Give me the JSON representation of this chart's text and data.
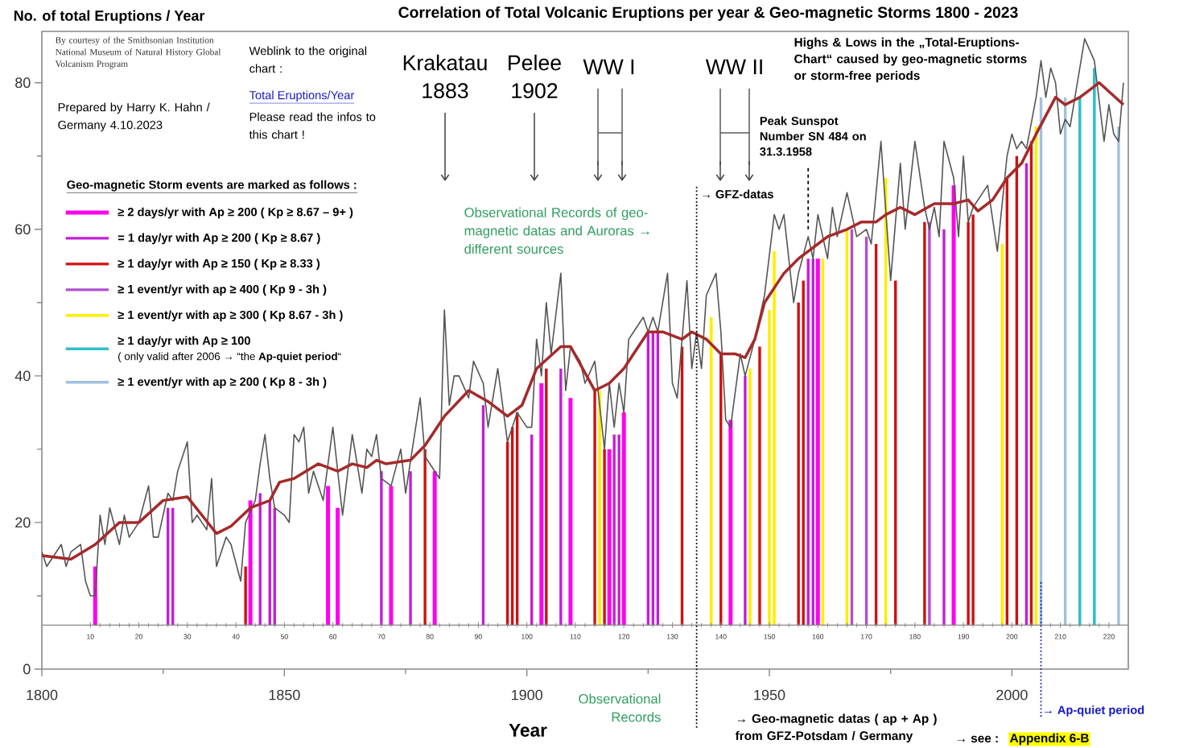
{
  "chart_data": {
    "type": "line",
    "title": "Correlation of Total Volcanic Eruptions per year  &  Geo-magnetic Storms    1800 - 2023",
    "ylabel": "No. of total Eruptions / Year",
    "xlabel": "Year",
    "legend_title": "Geo-magnetic Storm events are marked as follows :",
    "legend": "top left",
    "xlim": [
      1800,
      2024
    ],
    "ylim": [
      0,
      87
    ],
    "xticks": [
      1800,
      1850,
      1900,
      1950,
      2000
    ],
    "yticks": [
      0,
      20,
      40,
      60,
      80
    ],
    "x2lim": [
      0,
      224
    ],
    "x2ticks": [
      10,
      20,
      30,
      40,
      50,
      60,
      70,
      80,
      90,
      100,
      110,
      120,
      130,
      140,
      150,
      160,
      170,
      180,
      190,
      200,
      210,
      220
    ],
    "series": [
      {
        "color": "#555555",
        "x": [
          1800,
          1801,
          1804,
          1805,
          1806,
          1808,
          1809,
          1810,
          1811,
          1812,
          1813,
          1814,
          1816,
          1817,
          1818,
          1820,
          1822,
          1823,
          1824,
          1826,
          1827,
          1828,
          1830,
          1831,
          1832,
          1834,
          1835,
          1836,
          1838,
          1839,
          1841,
          1842,
          1844,
          1845,
          1846,
          1847,
          1848,
          1850,
          1851,
          1852,
          1853,
          1854,
          1855,
          1856,
          1858,
          1860,
          1862,
          1864,
          1866,
          1867,
          1868,
          1869,
          1870,
          1872,
          1874,
          1875,
          1878,
          1879,
          1882,
          1883,
          1884,
          1885,
          1886,
          1888,
          1889,
          1891,
          1892,
          1894,
          1896,
          1898,
          1900,
          1901,
          1902,
          1903,
          1904,
          1905,
          1907,
          1908,
          1909,
          1911,
          1912,
          1914,
          1916,
          1917,
          1918,
          1919,
          1920,
          1921,
          1922,
          1924,
          1925,
          1926,
          1927,
          1929,
          1930,
          1931,
          1933,
          1934,
          1935,
          1936,
          1937,
          1939,
          1940,
          1941,
          1942,
          1944,
          1945,
          1947,
          1949,
          1951,
          1952,
          1953,
          1955,
          1956,
          1958,
          1959,
          1960,
          1962,
          1963,
          1964,
          1966,
          1968,
          1970,
          1971,
          1973,
          1975,
          1977,
          1978,
          1980,
          1982,
          1983,
          1984,
          1985,
          1986,
          1988,
          1989,
          1990,
          1991,
          1992,
          1995,
          1997,
          1999,
          2000,
          2001,
          2002,
          2003,
          2005,
          2006,
          2007,
          2008,
          2009,
          2010,
          2011,
          2012,
          2013,
          2015,
          2017,
          2019,
          2020,
          2021,
          2022,
          2023
        ],
        "values": [
          16,
          14,
          17,
          14,
          16,
          17,
          12,
          10,
          10,
          21,
          17,
          22,
          17,
          21,
          18,
          20,
          25,
          18,
          18,
          24,
          23,
          27,
          31,
          20,
          21,
          19,
          26,
          14,
          18,
          17,
          12,
          20,
          23,
          28,
          32,
          26,
          22,
          21,
          20,
          32,
          31,
          33,
          24,
          27,
          23,
          33,
          21,
          32,
          24,
          30,
          29,
          32,
          26,
          25,
          30,
          24,
          37,
          29,
          26,
          49,
          36,
          40,
          40,
          37,
          42,
          39,
          33,
          41,
          31,
          35,
          33,
          33,
          45,
          40,
          50,
          43,
          54,
          38,
          44,
          42,
          39,
          42,
          30,
          39,
          33,
          39,
          35,
          45,
          46,
          48,
          46,
          48,
          46,
          54,
          39,
          37,
          53,
          41,
          46,
          41,
          51,
          54,
          46,
          34,
          33,
          43,
          40,
          45,
          51,
          62,
          60,
          62,
          50,
          54,
          59,
          56,
          62,
          56,
          63,
          59,
          65,
          59,
          60,
          58,
          72,
          53,
          69,
          60,
          72,
          63,
          60,
          63,
          59,
          72,
          67,
          59,
          70,
          61,
          63,
          66,
          57,
          70,
          73,
          71,
          72,
          71,
          78,
          83,
          78,
          82,
          80,
          73,
          75,
          74,
          78,
          86,
          83,
          72,
          77,
          73,
          72,
          80
        ]
      },
      {
        "color": "#a52a2a",
        "x": [
          1800,
          1806,
          1811,
          1816,
          1820,
          1825,
          1830,
          1836,
          1839,
          1843,
          1847,
          1849,
          1852,
          1857,
          1861,
          1864,
          1867,
          1869,
          1871,
          1876,
          1879,
          1883,
          1888,
          1892,
          1896,
          1899,
          1902,
          1907,
          1909,
          1914,
          1917,
          1920,
          1922,
          1925,
          1928,
          1932,
          1934,
          1937,
          1940,
          1943,
          1945,
          1947,
          1949,
          1953,
          1956,
          1958,
          1962,
          1966,
          1969,
          1972,
          1974,
          1977,
          1980,
          1984,
          1988,
          1991,
          1993,
          1996,
          1999,
          2002,
          2005,
          2009,
          2011,
          2014,
          2016,
          2018,
          2023
        ],
        "values": [
          15.5,
          15,
          17,
          20,
          20,
          23,
          23.5,
          18.5,
          19.5,
          22,
          23,
          25.5,
          26,
          28,
          27,
          28,
          27.5,
          28.5,
          28,
          28.5,
          30.5,
          34.5,
          38,
          36.5,
          34.5,
          36,
          41,
          44,
          44,
          38,
          39,
          41,
          43,
          46,
          46,
          45,
          46,
          45,
          43,
          43,
          42.5,
          45,
          50,
          54,
          56,
          57,
          59,
          60,
          61,
          61,
          62,
          63,
          62,
          63.5,
          63.5,
          64,
          62.5,
          64,
          67,
          69,
          73,
          78,
          77,
          78,
          79,
          80,
          77
        ]
      },
      {
        "type": "bar",
        "name": "≥ 2 days/yr with Ap ≥ 200   ( Kp ≥ 8.67 – 9+ )",
        "color": "#ff00ee",
        "x": [
          1811,
          1843,
          1859,
          1861,
          1872,
          1881,
          1903,
          1909,
          1917,
          1920,
          1942,
          1960,
          1988
        ],
        "values": [
          8,
          17,
          19,
          16,
          19,
          21,
          33,
          31,
          24,
          29,
          28,
          50,
          60
        ],
        "base": [
          6,
          6,
          6,
          6,
          6,
          6,
          6,
          6,
          6,
          6,
          6,
          6,
          6
        ]
      },
      {
        "type": "bar",
        "name": "= 1 day/yr  with Ap ≥ 200   ( Kp ≥ 8.67 )",
        "color": "#c21fd6",
        "x": [
          1826,
          1827,
          1845,
          1847,
          1848,
          1870,
          1876,
          1891,
          1901,
          1907,
          1918,
          1919,
          1925,
          1926,
          1927,
          1945,
          1958,
          1959,
          1986,
          2003
        ],
        "values": [
          16,
          16,
          18,
          17,
          16,
          21,
          21,
          30,
          26,
          35,
          26,
          26,
          40,
          40,
          40,
          34,
          50,
          50,
          54,
          63
        ],
        "base": [
          6,
          6,
          6,
          6,
          6,
          6,
          6,
          6,
          6,
          6,
          6,
          6,
          6,
          6,
          6,
          6,
          6,
          6,
          6,
          6
        ]
      },
      {
        "type": "bar",
        "name": "≥ 1 day/yr  with Ap ≥ 150   ( Kp ≥ 8.33 )",
        "color": "#d01010",
        "x": [
          1842,
          1879,
          1896,
          1897,
          1898,
          1904,
          1914,
          1916,
          1932,
          1940,
          1948,
          1956,
          1957,
          1972,
          1976,
          1982,
          1991,
          1992,
          1999,
          2001,
          2004
        ],
        "values": [
          8,
          24,
          25,
          27,
          29,
          35,
          32,
          24,
          38,
          37,
          38,
          44,
          47,
          52,
          47,
          55,
          55,
          56,
          61,
          64,
          66
        ],
        "base": [
          6,
          6,
          6,
          6,
          6,
          6,
          6,
          6,
          6,
          6,
          6,
          6,
          6,
          6,
          6,
          6,
          6,
          6,
          6,
          6,
          6
        ]
      },
      {
        "type": "bar",
        "name": "≥ 1 event/yr with ap ≥ 400  ( Kp 9 - 3h )",
        "color": "#b050d0",
        "x": [
          1967,
          1970,
          1983
        ],
        "values": [
          54,
          53,
          55
        ],
        "base": [
          6,
          6,
          6
        ]
      },
      {
        "type": "bar",
        "name": "≥ 1 event/yr with ap ≥ 300  ( Kp 8.67 - 3h )",
        "color": "#ffee00",
        "x": [
          1915,
          1938,
          1946,
          1950,
          1951,
          1961,
          1966,
          1974,
          1998,
          2005
        ],
        "values": [
          32,
          42,
          35,
          43,
          51,
          50,
          54,
          61,
          52,
          68
        ],
        "base": [
          6,
          6,
          6,
          6,
          6,
          6,
          6,
          6,
          6,
          6
        ]
      },
      {
        "type": "bar",
        "name": "≥ 1 day/yr  with Ap ≥ 100",
        "color": "#30c0c8",
        "x": [
          2014,
          2017
        ],
        "values": [
          72,
          76
        ],
        "base": [
          6,
          6
        ]
      },
      {
        "type": "bar",
        "name": "≥ 1 event/yr with ap ≥ 200  ( Kp 8 - 3h )",
        "color": "#a0c0e0",
        "x": [
          2006,
          2011,
          2022
        ],
        "values": [
          72,
          72,
          68
        ],
        "base": [
          6,
          6,
          6
        ]
      }
    ],
    "ref_lines": [
      {
        "axis": "x",
        "value": 1935,
        "label": "→ GFZ-datas",
        "line_style": "dotted"
      },
      {
        "axis": "x",
        "value": 2006,
        "label": "→ Ap-quiet period",
        "color": "#1a1acc",
        "line_style": "dotted"
      },
      {
        "axis": "x",
        "value": 1958,
        "label": "Peak Sunspot Number SN 484 on 31.3.1958",
        "line_style": "dashed"
      }
    ],
    "annotations": [
      "By courtesy of the Smithsonian Institution National Museum of Natural History Global Volcanism Program",
      "Prepared by Harry K. Hahn / Germany 4.10.2023",
      "Weblink to the original chart :",
      "Total Eruptions/Year",
      "Please read the infos to this chart !",
      "Krakatau 1883",
      "Pelee 1902",
      "Highs & Lows in the „Total-Eruptions-Chart“ caused by geo-magnetic storms or storm-free periods",
      "Observational Records of geo-magnetic datas and Auroras → different sources",
      "Observational Records",
      "→ Geo-magnetic datas ( ap + Ap ) from GFZ-Potsdam / Germany",
      "→ see :",
      "Appendix 6-B",
      "( only valid after 2006 → “the **Ap-quiet period**“",
      "WW I",
      "WW II"
    ]
  }
}
